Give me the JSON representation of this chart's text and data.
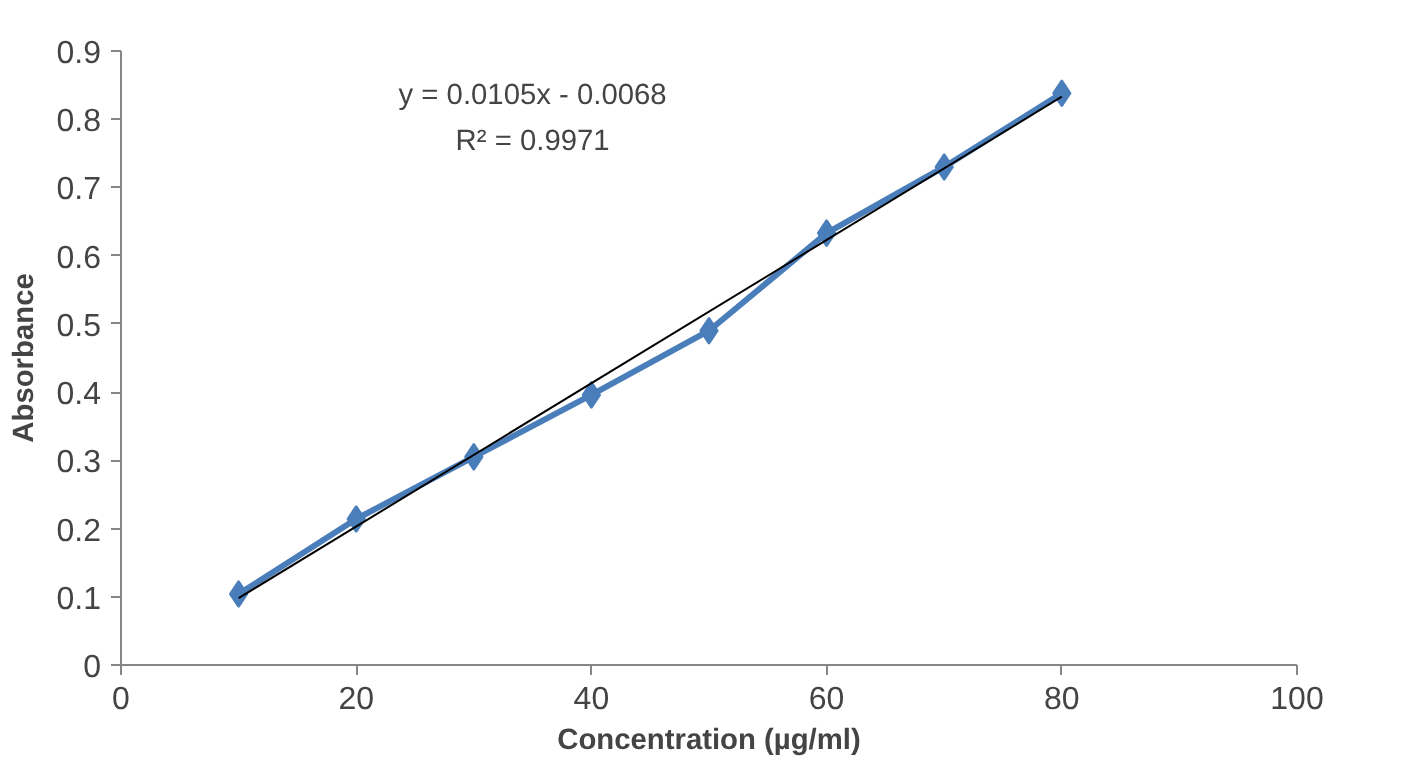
{
  "chart_data": {
    "type": "line",
    "xlabel": "Concentration (µg/ml)",
    "ylabel": "Absorbance",
    "x": [
      10,
      20,
      30,
      40,
      50,
      60,
      70,
      80
    ],
    "xlim": [
      0,
      100
    ],
    "xticks": [
      0,
      20,
      40,
      60,
      80,
      100
    ],
    "ylim": [
      0,
      0.9
    ],
    "yticks": [
      0,
      0.1,
      0.2,
      0.3,
      0.4,
      0.5,
      0.6,
      0.7,
      0.8,
      0.9
    ],
    "grid": false,
    "series": [
      {
        "color": "#4a7ebb",
        "marker": "diamond",
        "values": [
          0.104,
          0.214,
          0.305,
          0.396,
          0.49,
          0.633,
          0.73,
          0.838
        ]
      },
      {
        "color": "#000000",
        "marker": "none",
        "x": [
          10,
          80
        ],
        "values": [
          0.098,
          0.833
        ]
      }
    ],
    "annotations": [
      "y = 0.0105x - 0.0068",
      "R² = 0.9971"
    ]
  }
}
